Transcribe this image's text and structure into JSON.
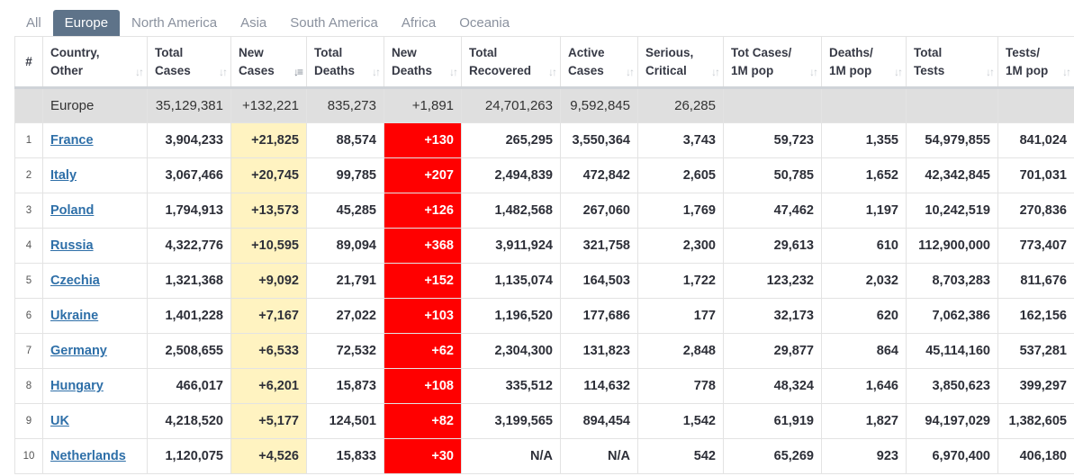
{
  "tabs": [
    {
      "label": "All",
      "active": false
    },
    {
      "label": "Europe",
      "active": true
    },
    {
      "label": "North America",
      "active": false
    },
    {
      "label": "Asia",
      "active": false
    },
    {
      "label": "South America",
      "active": false
    },
    {
      "label": "Africa",
      "active": false
    },
    {
      "label": "Oceania",
      "active": false
    }
  ],
  "columns": [
    {
      "line1": "#",
      "line2": ""
    },
    {
      "line1": "Country,",
      "line2": "Other"
    },
    {
      "line1": "Total",
      "line2": "Cases"
    },
    {
      "line1": "New",
      "line2": "Cases"
    },
    {
      "line1": "Total",
      "line2": "Deaths"
    },
    {
      "line1": "New",
      "line2": "Deaths"
    },
    {
      "line1": "Total",
      "line2": "Recovered"
    },
    {
      "line1": "Active",
      "line2": "Cases"
    },
    {
      "line1": "Serious,",
      "line2": "Critical"
    },
    {
      "line1": "Tot Cases/",
      "line2": "1M pop"
    },
    {
      "line1": "Deaths/",
      "line2": "1M pop"
    },
    {
      "line1": "Total",
      "line2": "Tests"
    },
    {
      "line1": "Tests/",
      "line2": "1M pop"
    }
  ],
  "sort_icon": "sort-arrows-icon",
  "sorted_column": "New Cases",
  "colors": {
    "tab_active": "#5e7389",
    "new_cases_bg": "#fff3c1",
    "new_deaths_bg": "#ff0000",
    "link": "#2e6fa8",
    "total_row_bg": "#dfdfdf"
  },
  "total_row": {
    "idx": "",
    "country": "Europe",
    "total_cases": "35,129,381",
    "new_cases": "+132,221",
    "total_deaths": "835,273",
    "new_deaths": "+1,891",
    "total_recovered": "24,701,263",
    "active_cases": "9,592,845",
    "serious": "26,285",
    "cases_per_1m": "",
    "deaths_per_1m": "",
    "total_tests": "",
    "tests_per_1m": ""
  },
  "rows": [
    {
      "idx": "1",
      "country": "France",
      "total_cases": "3,904,233",
      "new_cases": "+21,825",
      "total_deaths": "88,574",
      "new_deaths": "+130",
      "total_recovered": "265,295",
      "active_cases": "3,550,364",
      "serious": "3,743",
      "cases_per_1m": "59,723",
      "deaths_per_1m": "1,355",
      "total_tests": "54,979,855",
      "tests_per_1m": "841,024"
    },
    {
      "idx": "2",
      "country": "Italy",
      "total_cases": "3,067,466",
      "new_cases": "+20,745",
      "total_deaths": "99,785",
      "new_deaths": "+207",
      "total_recovered": "2,494,839",
      "active_cases": "472,842",
      "serious": "2,605",
      "cases_per_1m": "50,785",
      "deaths_per_1m": "1,652",
      "total_tests": "42,342,845",
      "tests_per_1m": "701,031"
    },
    {
      "idx": "3",
      "country": "Poland",
      "total_cases": "1,794,913",
      "new_cases": "+13,573",
      "total_deaths": "45,285",
      "new_deaths": "+126",
      "total_recovered": "1,482,568",
      "active_cases": "267,060",
      "serious": "1,769",
      "cases_per_1m": "47,462",
      "deaths_per_1m": "1,197",
      "total_tests": "10,242,519",
      "tests_per_1m": "270,836"
    },
    {
      "idx": "4",
      "country": "Russia",
      "total_cases": "4,322,776",
      "new_cases": "+10,595",
      "total_deaths": "89,094",
      "new_deaths": "+368",
      "total_recovered": "3,911,924",
      "active_cases": "321,758",
      "serious": "2,300",
      "cases_per_1m": "29,613",
      "deaths_per_1m": "610",
      "total_tests": "112,900,000",
      "tests_per_1m": "773,407"
    },
    {
      "idx": "5",
      "country": "Czechia",
      "total_cases": "1,321,368",
      "new_cases": "+9,092",
      "total_deaths": "21,791",
      "new_deaths": "+152",
      "total_recovered": "1,135,074",
      "active_cases": "164,503",
      "serious": "1,722",
      "cases_per_1m": "123,232",
      "deaths_per_1m": "2,032",
      "total_tests": "8,703,283",
      "tests_per_1m": "811,676"
    },
    {
      "idx": "6",
      "country": "Ukraine",
      "total_cases": "1,401,228",
      "new_cases": "+7,167",
      "total_deaths": "27,022",
      "new_deaths": "+103",
      "total_recovered": "1,196,520",
      "active_cases": "177,686",
      "serious": "177",
      "cases_per_1m": "32,173",
      "deaths_per_1m": "620",
      "total_tests": "7,062,386",
      "tests_per_1m": "162,156"
    },
    {
      "idx": "7",
      "country": "Germany",
      "total_cases": "2,508,655",
      "new_cases": "+6,533",
      "total_deaths": "72,532",
      "new_deaths": "+62",
      "total_recovered": "2,304,300",
      "active_cases": "131,823",
      "serious": "2,848",
      "cases_per_1m": "29,877",
      "deaths_per_1m": "864",
      "total_tests": "45,114,160",
      "tests_per_1m": "537,281"
    },
    {
      "idx": "8",
      "country": "Hungary",
      "total_cases": "466,017",
      "new_cases": "+6,201",
      "total_deaths": "15,873",
      "new_deaths": "+108",
      "total_recovered": "335,512",
      "active_cases": "114,632",
      "serious": "778",
      "cases_per_1m": "48,324",
      "deaths_per_1m": "1,646",
      "total_tests": "3,850,623",
      "tests_per_1m": "399,297"
    },
    {
      "idx": "9",
      "country": "UK",
      "total_cases": "4,218,520",
      "new_cases": "+5,177",
      "total_deaths": "124,501",
      "new_deaths": "+82",
      "total_recovered": "3,199,565",
      "active_cases": "894,454",
      "serious": "1,542",
      "cases_per_1m": "61,919",
      "deaths_per_1m": "1,827",
      "total_tests": "94,197,029",
      "tests_per_1m": "1,382,605"
    },
    {
      "idx": "10",
      "country": "Netherlands",
      "total_cases": "1,120,075",
      "new_cases": "+4,526",
      "total_deaths": "15,833",
      "new_deaths": "+30",
      "total_recovered": "N/A",
      "active_cases": "N/A",
      "serious": "542",
      "cases_per_1m": "65,269",
      "deaths_per_1m": "923",
      "total_tests": "6,970,400",
      "tests_per_1m": "406,180"
    }
  ]
}
